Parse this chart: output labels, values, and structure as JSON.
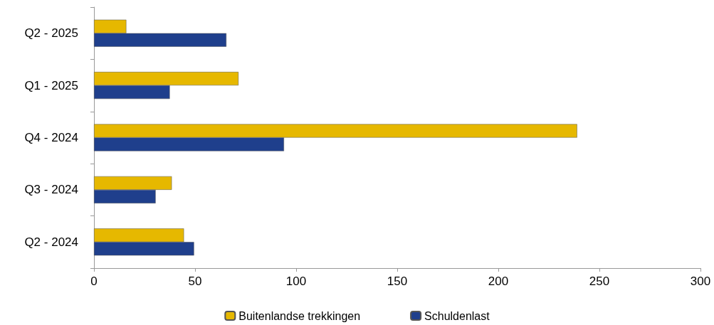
{
  "chart_data": {
    "type": "bar",
    "orientation": "horizontal",
    "categories": [
      "Q2 - 2025",
      "Q1 - 2025",
      "Q4 - 2024",
      "Q3 - 2024",
      "Q2 - 2024"
    ],
    "series": [
      {
        "name": "Buitenlandse trekkingen",
        "color": "#e6b800",
        "values": [
          16,
          71.5,
          239,
          38.5,
          44.5
        ]
      },
      {
        "name": "Schuldenlast",
        "color": "#1f3f8c",
        "values": [
          65.5,
          37.5,
          94,
          30.5,
          49.5
        ]
      }
    ],
    "xlim": [
      0,
      300
    ],
    "xticks": [
      0,
      50,
      100,
      150,
      200,
      250,
      300
    ],
    "grid": false,
    "legend": "bottom"
  }
}
